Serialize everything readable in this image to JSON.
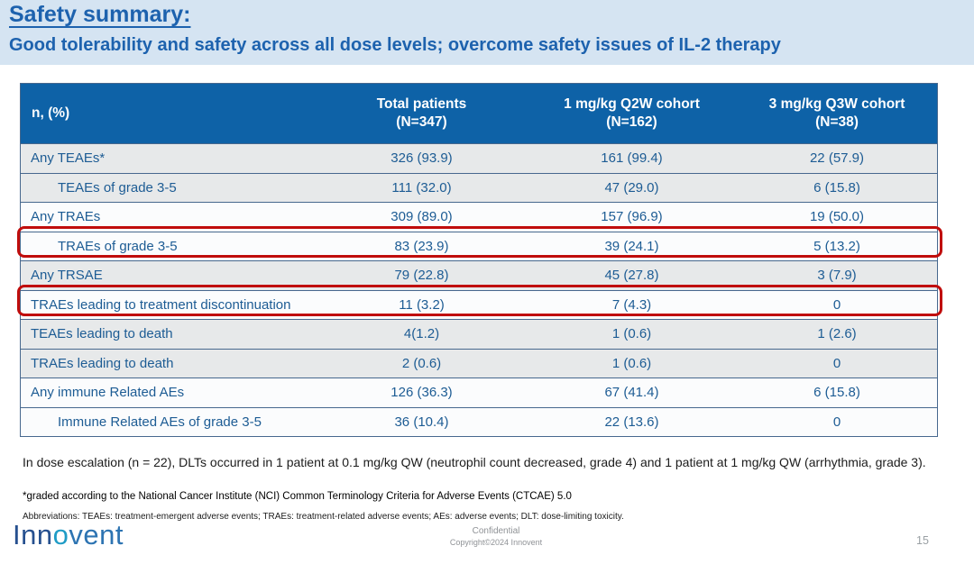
{
  "slide": {
    "title": "Safety summary:",
    "subtitle": "Good tolerability and safety across all dose levels; overcome safety issues of IL-2 therapy",
    "page_number": "15"
  },
  "colors": {
    "band_background": "#d5e4f2",
    "title_blue": "#1d62ae",
    "table_header_background": "#0e62a7",
    "table_header_text": "#ffffff",
    "row_text_blue": "#1d5c94",
    "row_gray": "#e7e9ea",
    "row_white": "#fbfcfd",
    "row_separator": "#47688e",
    "highlight_red": "#c00d0c"
  },
  "table": {
    "columns": [
      {
        "line1": "n, (%)",
        "line2": ""
      },
      {
        "line1": "Total patients",
        "line2": "(N=347)"
      },
      {
        "line1": "1 mg/kg Q2W cohort",
        "line2": "(N=162)"
      },
      {
        "line1": "3 mg/kg Q3W cohort",
        "line2": "(N=38)"
      }
    ],
    "rows": [
      {
        "label": "Any TEAEs*",
        "indent": false,
        "shade": "gray",
        "highlight": false,
        "values": [
          "326 (93.9)",
          "161 (99.4)",
          "22 (57.9)"
        ]
      },
      {
        "label": "TEAEs of grade 3-5",
        "indent": true,
        "shade": "gray",
        "highlight": false,
        "values": [
          "111 (32.0)",
          "47 (29.0)",
          "6 (15.8)"
        ]
      },
      {
        "label": "Any TRAEs",
        "indent": false,
        "shade": "white",
        "highlight": false,
        "values": [
          "309 (89.0)",
          "157 (96.9)",
          "19 (50.0)"
        ]
      },
      {
        "label": "TRAEs of grade 3-5",
        "indent": true,
        "shade": "white",
        "highlight": true,
        "values": [
          "83 (23.9)",
          "39 (24.1)",
          "5 (13.2)"
        ]
      },
      {
        "label": "Any TRSAE",
        "indent": false,
        "shade": "gray",
        "highlight": false,
        "values": [
          "79 (22.8)",
          "45 (27.8)",
          "3 (7.9)"
        ]
      },
      {
        "label": "TRAEs leading to treatment discontinuation",
        "indent": false,
        "shade": "white",
        "highlight": true,
        "values": [
          "11 (3.2)",
          "7 (4.3)",
          "0"
        ]
      },
      {
        "label": "TEAEs leading to death",
        "indent": false,
        "shade": "gray",
        "highlight": false,
        "values": [
          "4(1.2)",
          "1 (0.6)",
          "1 (2.6)"
        ]
      },
      {
        "label": "TRAEs leading to death",
        "indent": false,
        "shade": "gray",
        "highlight": false,
        "values": [
          "2 (0.6)",
          "1 (0.6)",
          "0"
        ]
      },
      {
        "label": "Any immune Related AEs",
        "indent": false,
        "shade": "white",
        "highlight": false,
        "values": [
          "126 (36.3)",
          "67 (41.4)",
          "6 (15.8)"
        ]
      },
      {
        "label": "Immune Related AEs of grade 3-5",
        "indent": true,
        "shade": "white",
        "highlight": false,
        "values": [
          "36 (10.4)",
          "22 (13.6)",
          "0"
        ]
      }
    ]
  },
  "footnotes": {
    "dlt_note": "In dose escalation (n = 22), DLTs occurred in 1 patient at 0.1 mg/kg QW (neutrophil count decreased, grade 4) and 1 patient at 1 mg/kg QW (arrhythmia, grade 3).",
    "grading_note": "*graded according to the National Cancer Institute (NCI) Common Terminology Criteria for Adverse Events (CTCAE) 5.0",
    "abbreviations": "Abbreviations: TEAEs: treatment-emergent adverse events; TRAEs: treatment-related adverse events; AEs: adverse events; DLT: dose-limiting toxicity."
  },
  "footer": {
    "logo_part1": "Inn",
    "logo_part2": "o",
    "logo_part3": "vent",
    "confidential": "Confidential",
    "copyright": "Copyright©2024  Innovent",
    "page_number": "15"
  }
}
